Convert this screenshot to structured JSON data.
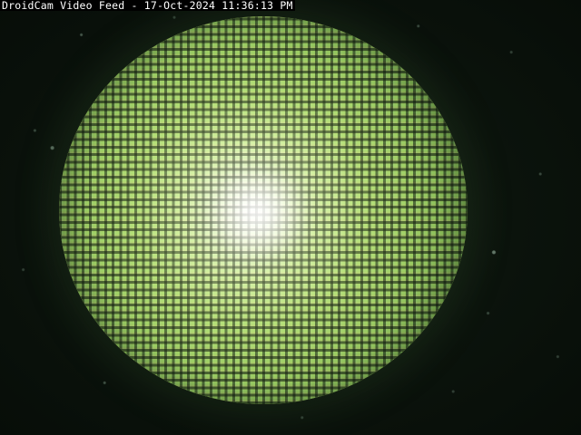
{
  "feed": {
    "overlay_text": "DroidCam Video Feed - 17-Oct-2024 11:36:13 PM"
  },
  "colors": {
    "background": "#0b130c",
    "disc_center": "#ffffff",
    "disc_mid": "#b9df78",
    "disc_edge": "#4d7436",
    "overlay_text": "#ffffff",
    "overlay_background": "#000000"
  }
}
